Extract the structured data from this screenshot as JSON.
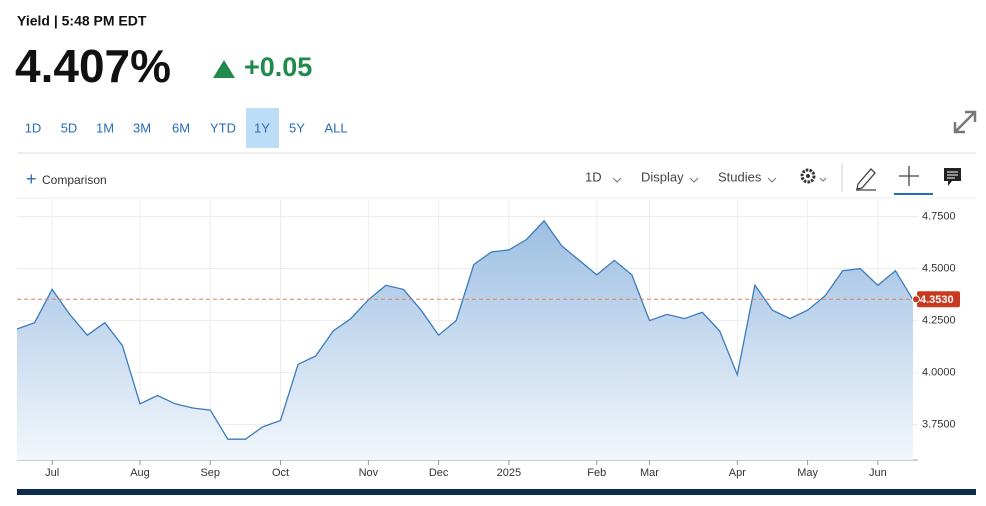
{
  "header": {
    "label": "Yield | 5:48 PM EDT",
    "price": "4.407%",
    "change": "+0.05"
  },
  "ranges": [
    "1D",
    "5D",
    "1M",
    "3M",
    "6M",
    "YTD",
    "1Y",
    "5Y",
    "ALL"
  ],
  "selected_range": "1Y",
  "toolbar": {
    "comparison": "Comparison",
    "interval": "1D",
    "display": "Display",
    "studies": "Studies"
  },
  "chart_data": {
    "type": "area",
    "categories": [
      null,
      null,
      "Jul",
      null,
      null,
      null,
      null,
      "Aug",
      null,
      null,
      null,
      "Sep",
      null,
      null,
      null,
      "Oct",
      null,
      null,
      null,
      null,
      "Nov",
      null,
      null,
      null,
      "Dec",
      null,
      null,
      null,
      "2025",
      null,
      null,
      null,
      null,
      "Feb",
      null,
      null,
      "Mar",
      null,
      null,
      null,
      null,
      "Apr",
      null,
      null,
      null,
      "May",
      null,
      null,
      null,
      "Jun",
      null,
      null
    ],
    "series": [
      {
        "name": "Yield",
        "color": "#3b7bbf",
        "values": [
          4.21,
          4.24,
          4.4,
          4.28,
          4.18,
          4.24,
          4.13,
          3.85,
          3.89,
          3.85,
          3.83,
          3.82,
          3.68,
          3.68,
          3.74,
          3.77,
          4.04,
          4.08,
          4.2,
          4.26,
          4.35,
          4.42,
          4.4,
          4.3,
          4.18,
          4.25,
          4.52,
          4.58,
          4.59,
          4.64,
          4.73,
          4.61,
          4.54,
          4.47,
          4.54,
          4.47,
          4.25,
          4.28,
          4.26,
          4.29,
          4.2,
          3.99,
          4.42,
          4.3,
          4.26,
          4.3,
          4.37,
          4.49,
          4.5,
          4.42,
          4.49,
          4.35
        ]
      }
    ],
    "ylim": [
      3.58,
      4.83
    ],
    "yticks": [
      {
        "value": 3.75,
        "label": "3.7500"
      },
      {
        "value": 4.0,
        "label": "4.0000"
      },
      {
        "value": 4.25,
        "label": "4.2500"
      },
      {
        "value": 4.5,
        "label": "4.5000"
      },
      {
        "value": 4.75,
        "label": "4.7500"
      }
    ],
    "current": {
      "value": 4.353,
      "label": "4.3530",
      "color": "#c8391f"
    },
    "grid": true
  }
}
